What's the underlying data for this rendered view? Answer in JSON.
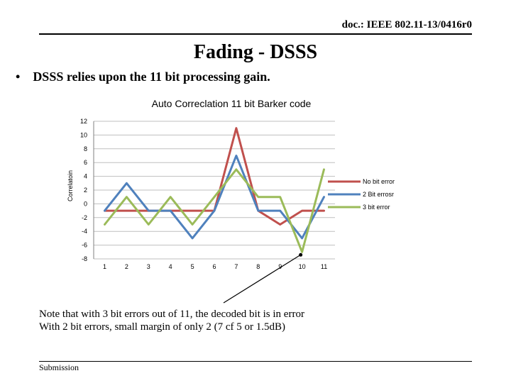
{
  "header": {
    "doc_id": "doc.: IEEE 802.11-13/0416r0"
  },
  "slide": {
    "title": "Fading - DSSS",
    "bullet_symbol": "•",
    "bullet_text": "DSSS relies upon the 11 bit processing gain."
  },
  "notes": {
    "line1": "Note  that with 3 bit errors out of 11, the decoded bit is in error",
    "line2": "With 2 bit errors, small margin of only 2 (7 cf 5 or 1.5dB)"
  },
  "footer": {
    "label": "Submission"
  },
  "colors": {
    "no_bit_error": "#c0504d",
    "two_bit_errors": "#4f81bd",
    "three_bit_error": "#9bbb59",
    "grid": "#bfbfbf",
    "axis": "#808080"
  },
  "chart_data": {
    "type": "line",
    "title": "Auto Correclation 11 bit Barker code",
    "xlabel": "",
    "ylabel": "Correlatoin",
    "x": [
      1,
      2,
      3,
      4,
      5,
      6,
      7,
      8,
      9,
      10,
      11
    ],
    "ylim": [
      -8,
      12
    ],
    "yticks": [
      -8,
      -6,
      -4,
      -2,
      0,
      2,
      4,
      6,
      8,
      10,
      12
    ],
    "grid": true,
    "legend_position": "right",
    "series": [
      {
        "name": "No bit error",
        "color_key": "no_bit_error",
        "values": [
          -1,
          -1,
          -1,
          -1,
          -1,
          -1,
          11,
          -1,
          -3,
          -1,
          -1
        ]
      },
      {
        "name": "2 Bit errosr",
        "color_key": "two_bit_errors",
        "values": [
          -1,
          3,
          -1,
          -1,
          -5,
          -1,
          7,
          -1,
          -1,
          -5,
          1
        ]
      },
      {
        "name": "3 bit error",
        "color_key": "three_bit_error",
        "values": [
          -3,
          1,
          -3,
          1,
          -3,
          1,
          5,
          1,
          1,
          -7,
          5
        ]
      }
    ]
  }
}
